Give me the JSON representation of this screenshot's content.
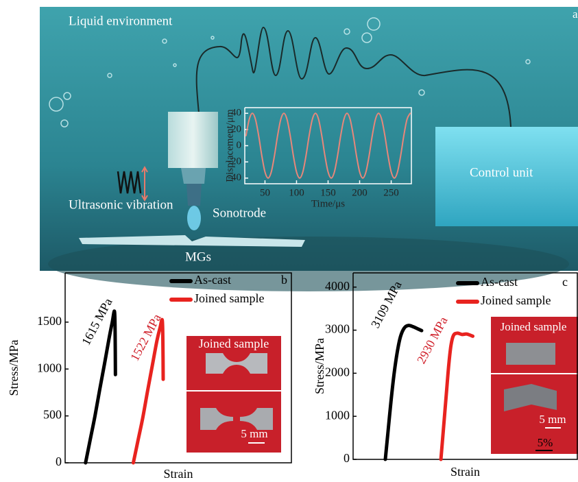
{
  "panel_a": {
    "label": "a",
    "liquid": "Liquid environment",
    "vibration": "Ultrasonic vibration",
    "sonotrode": "Sonotrode",
    "control": "Control unit",
    "material": "MGs"
  },
  "chart_data": [
    {
      "type": "line",
      "x_label": "Time/μs",
      "y_label": "Displacement/μm",
      "xlim": [
        18,
        282
      ],
      "xticks": [
        50,
        100,
        150,
        200,
        250
      ],
      "ylim": [
        -47,
        47
      ],
      "yticks": [
        -40,
        -20,
        0,
        20,
        40
      ],
      "series": [
        {
          "name": null,
          "color": "#e8877a",
          "x": [
            20,
            25,
            30,
            35,
            40,
            45,
            50,
            55,
            60,
            65,
            70,
            75,
            80,
            85,
            90,
            95,
            100,
            105,
            110,
            115,
            120,
            125,
            130,
            135,
            140,
            145,
            150,
            155,
            160,
            165,
            170,
            175,
            180,
            185,
            190,
            195,
            200,
            205,
            210,
            215,
            220,
            225,
            230,
            235,
            240,
            245,
            250,
            255,
            260,
            265,
            270,
            275,
            280
          ],
          "values": [
            12.4,
            32.4,
            40,
            32.4,
            12.4,
            -12.4,
            -32.4,
            -40,
            -32.4,
            -12.4,
            12.4,
            32.4,
            40,
            32.4,
            12.4,
            -12.4,
            -32.4,
            -40,
            -32.4,
            -12.4,
            12.4,
            32.4,
            40,
            32.4,
            12.4,
            -12.4,
            -32.4,
            -40,
            -32.4,
            -12.4,
            12.4,
            32.4,
            40,
            32.4,
            12.4,
            -12.4,
            -32.4,
            -40,
            -32.4,
            -12.4,
            12.4,
            32.4,
            40,
            32.4,
            12.4,
            -12.4,
            -32.4,
            -40,
            -32.4,
            -12.4,
            12.4,
            32.4,
            40
          ]
        }
      ]
    },
    {
      "type": "line",
      "panel": "b",
      "x_label": "Strain",
      "y_label": "Stress/MPa",
      "xlim": [
        0,
        72
      ],
      "ylim": [
        0,
        2025
      ],
      "yticks": [
        0,
        500,
        1000,
        1500
      ],
      "series": [
        {
          "name": "As-cast",
          "color": "#000000",
          "x": [
            6.5,
            8,
            9.5,
            11,
            12.5,
            14,
            15,
            15.7,
            15.9,
            16
          ],
          "values": [
            0,
            250,
            500,
            780,
            1050,
            1330,
            1500,
            1615,
            1400,
            940
          ]
        },
        {
          "name": "Joined sample",
          "color": "#e8231f",
          "x": [
            21.7,
            23.2,
            24.7,
            26.2,
            27.7,
            29.2,
            30.2,
            30.9,
            31.1,
            31.2
          ],
          "values": [
            0,
            240,
            480,
            760,
            1030,
            1300,
            1440,
            1522,
            1300,
            890
          ]
        }
      ],
      "annotations": [
        {
          "text": "1615 MPa",
          "color": "#000000"
        },
        {
          "text": "1522 MPa",
          "color": "#d0202a"
        }
      ],
      "inset": {
        "title": "Joined sample",
        "scale": "5 mm"
      }
    },
    {
      "type": "line",
      "panel": "c",
      "x_label": "Strain",
      "y_label": "Stress/MPa",
      "xlim": [
        0,
        71
      ],
      "ylim": [
        0,
        4330
      ],
      "yticks": [
        0,
        1000,
        2000,
        3000,
        4000
      ],
      "series": [
        {
          "name": "As-cast",
          "color": "#000000",
          "x": [
            10.2,
            11,
            12,
            13,
            14,
            15,
            16.2,
            17.5,
            19,
            20.5,
            21.7
          ],
          "values": [
            0,
            600,
            1350,
            2000,
            2500,
            2850,
            3050,
            3109,
            3080,
            3030,
            2990
          ]
        },
        {
          "name": "Joined sample",
          "color": "#e8231f",
          "x": [
            27.8,
            28.6,
            29.5,
            30.3,
            31,
            31.8,
            33,
            34.5,
            36,
            37.9
          ],
          "values": [
            0,
            700,
            1500,
            2200,
            2650,
            2880,
            2930,
            2900,
            2910,
            2860
          ]
        }
      ],
      "annotations": [
        {
          "text": "3109 MPa",
          "color": "#000000"
        },
        {
          "text": "2930 MPa",
          "color": "#d0202a"
        }
      ],
      "inset": {
        "title": "Joined sample",
        "scale": "5 mm"
      },
      "strain_scale": "5%"
    }
  ]
}
